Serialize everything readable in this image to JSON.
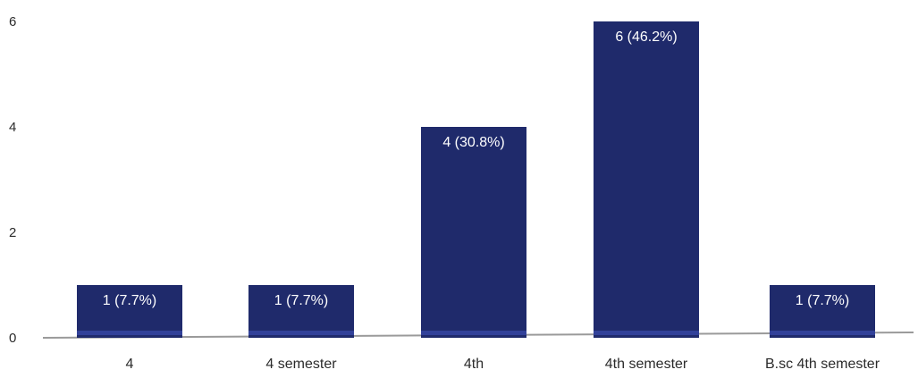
{
  "chart_data": {
    "type": "bar",
    "title": "",
    "xlabel": "",
    "ylabel": "",
    "categories": [
      "4",
      "4 semester",
      "4th",
      "4th semester",
      "B.sc 4th semester"
    ],
    "values": [
      1,
      1,
      4,
      6,
      1
    ],
    "data_labels": [
      "1 (7.7%)",
      "1 (7.7%)",
      "4 (30.8%)",
      "6 (46.2%)",
      "1 (7.7%)"
    ],
    "yticks": [
      0,
      2,
      4,
      6
    ],
    "ylim": [
      0,
      6.5
    ],
    "grid": false,
    "legend": "none",
    "colors": {
      "bar": "#1f2a6b",
      "bar_edge": "#3a4aa8",
      "axis": "#9a9a9a",
      "data_label": "#ffffff",
      "text": "#2b2b2b"
    }
  }
}
